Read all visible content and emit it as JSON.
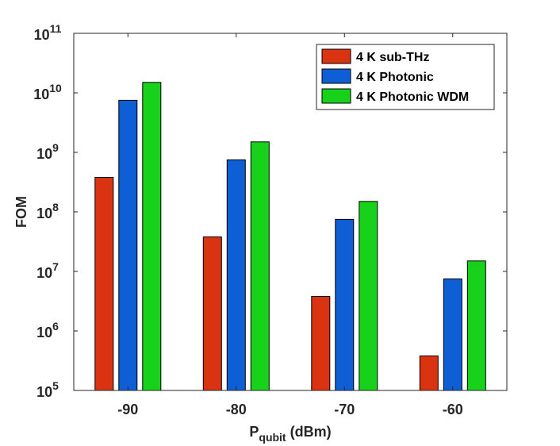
{
  "chart_data": {
    "type": "bar",
    "title": "",
    "xlabel": {
      "main": "P",
      "sub": "qubit",
      "unit": " (dBm)"
    },
    "ylabel": "FOM",
    "yscale": "log",
    "ylim": [
      100000,
      100000000000
    ],
    "ytick_base": "10",
    "ytick_exponents": [
      "5",
      "6",
      "7",
      "8",
      "9",
      "10",
      "11"
    ],
    "categories": [
      "-90",
      "-80",
      "-70",
      "-60"
    ],
    "series": [
      {
        "name": "4 K sub-THz",
        "color": "#d93311",
        "values": [
          380000000,
          38000000,
          3800000,
          380000
        ]
      },
      {
        "name": "4 K Photonic",
        "color": "#0e5fd6",
        "values": [
          7500000000,
          750000000,
          75000000,
          7500000
        ]
      },
      {
        "name": "4 K Photonic WDM",
        "color": "#17d11a",
        "values": [
          15000000000,
          1500000000,
          150000000,
          15000000
        ]
      }
    ],
    "legend_position": "top-right",
    "grid": false
  }
}
